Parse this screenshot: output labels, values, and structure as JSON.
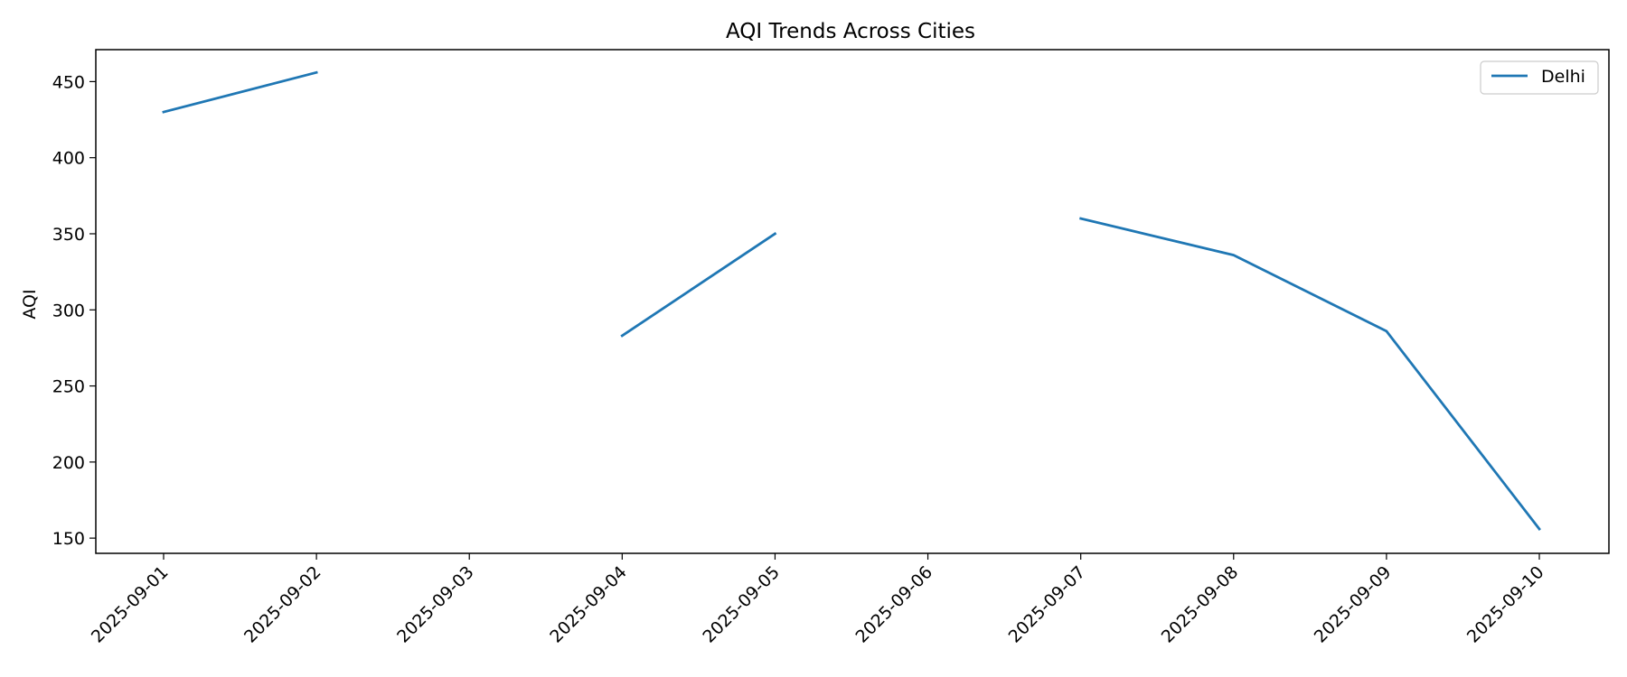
{
  "chart_data": {
    "type": "line",
    "title": "AQI Trends Across Cities",
    "xlabel": "",
    "ylabel": "AQI",
    "x": [
      "2025-09-01",
      "2025-09-02",
      "2025-09-03",
      "2025-09-04",
      "2025-09-05",
      "2025-09-06",
      "2025-09-07",
      "2025-09-08",
      "2025-09-09",
      "2025-09-10"
    ],
    "series": [
      {
        "name": "Delhi",
        "color": "#1f77b4",
        "values": [
          430,
          456,
          null,
          283,
          350,
          null,
          360,
          336,
          286,
          156
        ]
      }
    ],
    "yticks": [
      150,
      200,
      250,
      300,
      350,
      400,
      450
    ],
    "ylim": [
      140,
      471
    ],
    "grid": false,
    "legend_position": "top-right"
  }
}
